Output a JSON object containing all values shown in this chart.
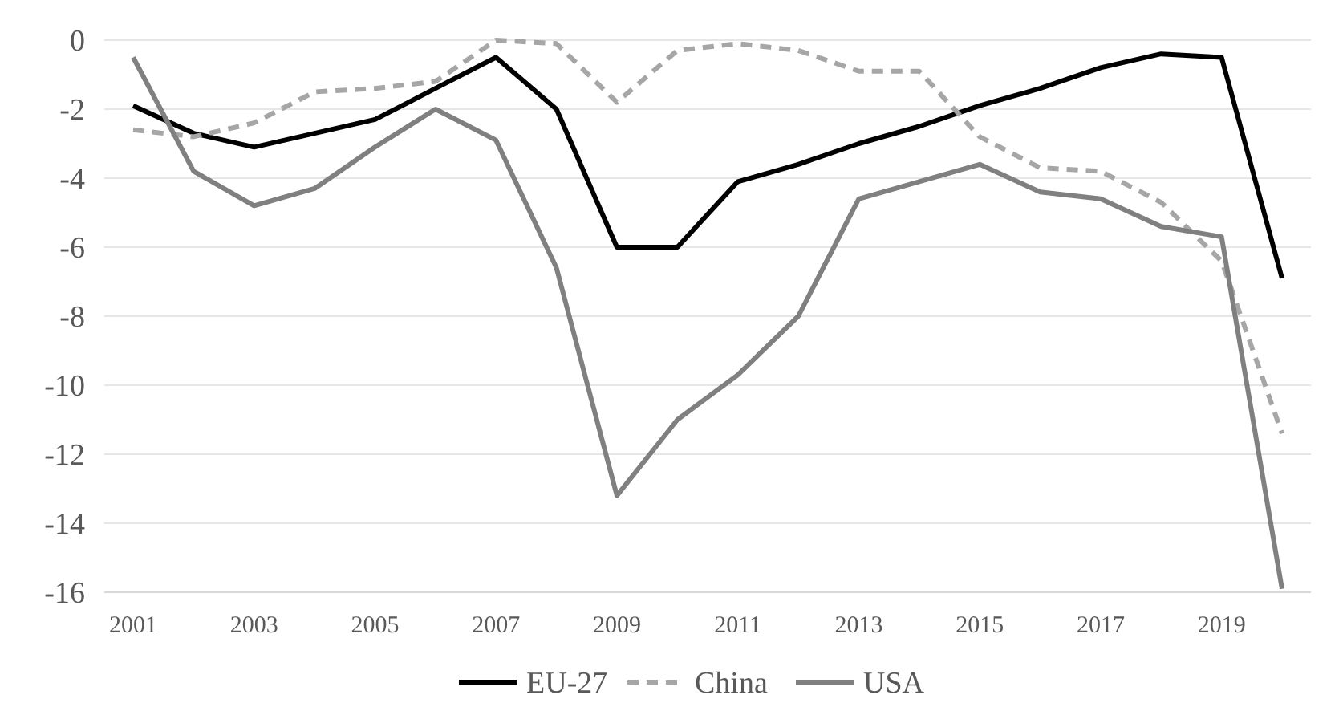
{
  "chart_data": {
    "type": "line",
    "categories": [
      "2001",
      null,
      "2003",
      null,
      "2005",
      null,
      "2007",
      null,
      "2009",
      null,
      "2011",
      null,
      "2013",
      null,
      "2015",
      null,
      "2017",
      null,
      "2019",
      null
    ],
    "series": [
      {
        "name": "EU-27",
        "color": "#000000",
        "line_style": "solid",
        "values": [
          -1.9,
          -2.7,
          -3.1,
          -2.7,
          -2.3,
          -1.4,
          -0.5,
          -2.0,
          -6.0,
          -6.0,
          -4.1,
          -3.6,
          -3.0,
          -2.5,
          -1.9,
          -1.4,
          -0.8,
          -0.4,
          -0.5,
          -6.9
        ]
      },
      {
        "name": "China",
        "color": "#a6a6a6",
        "line_style": "dashed",
        "values": [
          -2.6,
          -2.8,
          -2.4,
          -1.5,
          -1.4,
          -1.2,
          0.0,
          -0.1,
          -1.8,
          -0.3,
          -0.1,
          -0.3,
          -0.9,
          -0.9,
          -2.8,
          -3.7,
          -3.8,
          -4.7,
          -6.4,
          -11.4
        ]
      },
      {
        "name": "USA",
        "color": "#808080",
        "line_style": "solid",
        "values": [
          -0.5,
          -3.8,
          -4.8,
          -4.3,
          -3.1,
          -2.0,
          -2.9,
          -6.6,
          -13.2,
          -11.0,
          -9.7,
          -8.0,
          -4.6,
          -4.1,
          -3.6,
          -4.4,
          -4.6,
          -5.4,
          -5.7,
          -15.9
        ]
      }
    ],
    "ylim": [
      -16,
      0
    ],
    "yticks": [
      -16,
      -14,
      -12,
      -10,
      -8,
      -6,
      -4,
      -2,
      0
    ],
    "grid": "y",
    "legend": "bottom",
    "marker": "none"
  }
}
